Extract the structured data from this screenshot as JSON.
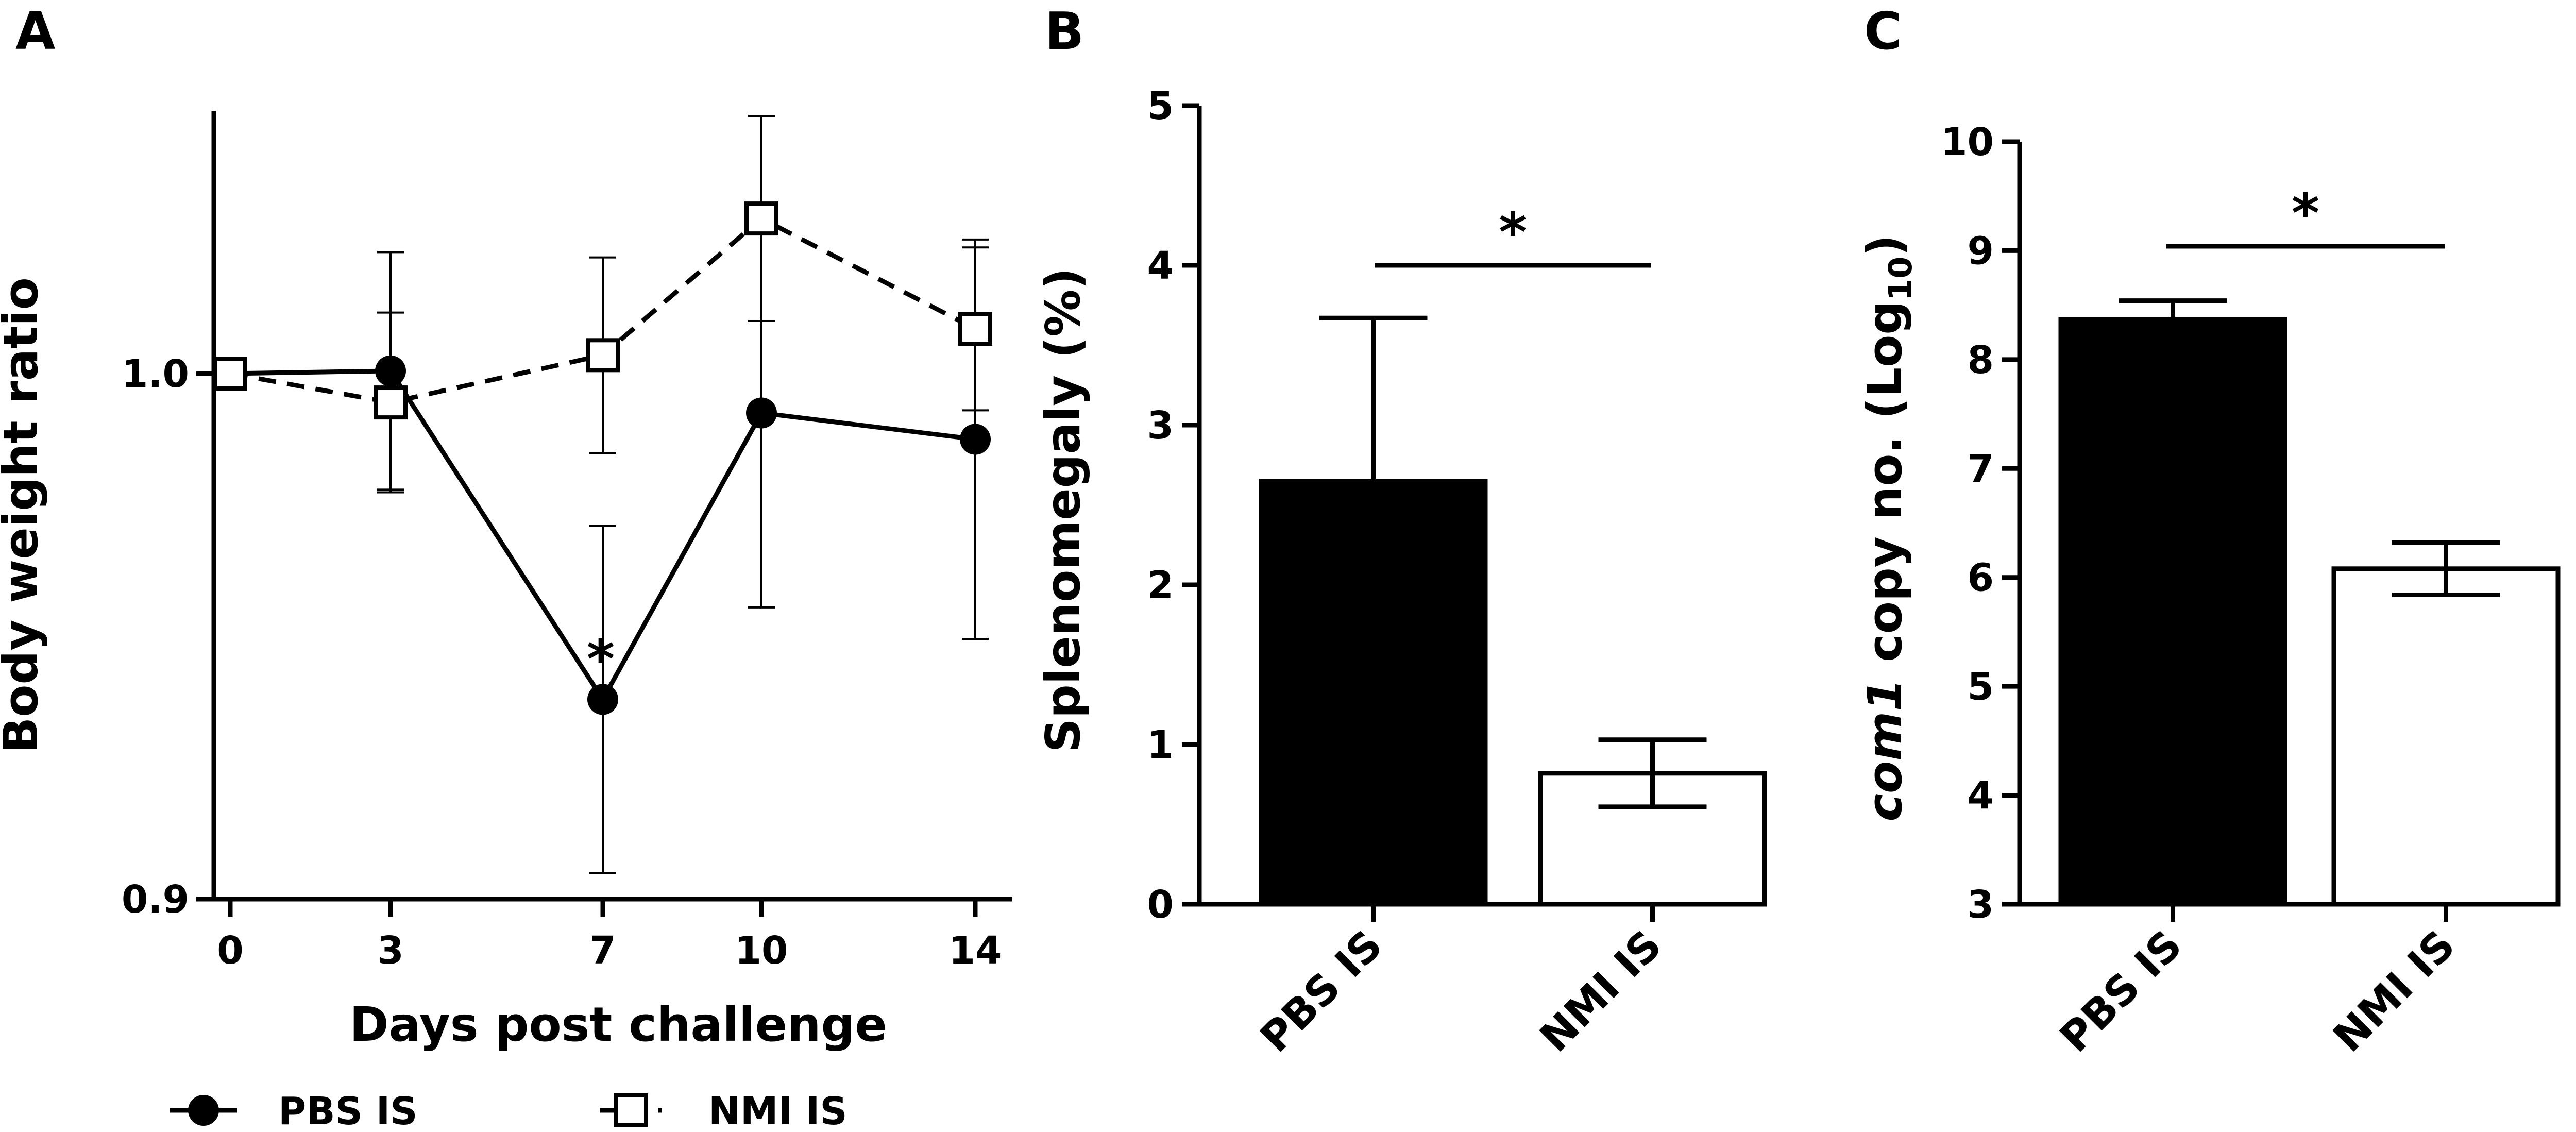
{
  "chart_data": [
    {
      "panel": "A",
      "type": "line",
      "xlabel": "Days post challenge",
      "ylabel": "Body weight ratio",
      "x": [
        0,
        3,
        7,
        10,
        14
      ],
      "x_tick_labels": [
        "0",
        "3",
        "7",
        "10",
        "14"
      ],
      "ylim": [
        0.9,
        1.05
      ],
      "y_tick_labels": [
        "0.9",
        "1.0"
      ],
      "series": [
        {
          "name": "PBS IS",
          "marker": "filled-circle",
          "line": "solid",
          "values": [
            1.0,
            1.0005,
            0.938,
            0.9925,
            0.9875
          ],
          "error": [
            0.0,
            0.0226,
            0.033,
            0.037,
            0.038
          ]
        },
        {
          "name": "NMI IS",
          "marker": "open-square",
          "line": "dashed",
          "values": [
            1.0,
            0.9945,
            1.0035,
            1.0295,
            1.0085
          ],
          "error": [
            0.0,
            0.0171,
            0.0186,
            0.0195,
            0.0155
          ]
        }
      ],
      "annotations": [
        {
          "text": "*",
          "at_x": 7,
          "series": "PBS IS"
        }
      ],
      "legend": "bottom"
    },
    {
      "panel": "B",
      "type": "bar",
      "ylabel": "Splenomegaly (%)",
      "categories": [
        "PBS IS",
        "NMI IS"
      ],
      "values": [
        2.65,
        0.82
      ],
      "error": [
        1.02,
        0.21
      ],
      "bar_fill": [
        "#000000",
        "#ffffff"
      ],
      "ylim": [
        0,
        5
      ],
      "y_tick_labels": [
        "0",
        "1",
        "2",
        "3",
        "4",
        "5"
      ],
      "significance": {
        "text": "*",
        "between": [
          "PBS IS",
          "NMI IS"
        ]
      }
    },
    {
      "panel": "C",
      "type": "bar",
      "ylabel_italic": "com1",
      "ylabel_rest": " copy no. (Log",
      "ylabel_sub": "10",
      "ylabel_close": ")",
      "categories": [
        "PBS IS",
        "NMI IS"
      ],
      "values": [
        8.37,
        6.08
      ],
      "error": [
        0.17,
        0.24
      ],
      "bar_fill": [
        "#000000",
        "#ffffff"
      ],
      "ylim": [
        3,
        10
      ],
      "y_tick_labels": [
        "3",
        "4",
        "5",
        "6",
        "7",
        "8",
        "9",
        "10"
      ],
      "significance": {
        "text": "*",
        "between": [
          "PBS IS",
          "NMI IS"
        ]
      }
    }
  ]
}
